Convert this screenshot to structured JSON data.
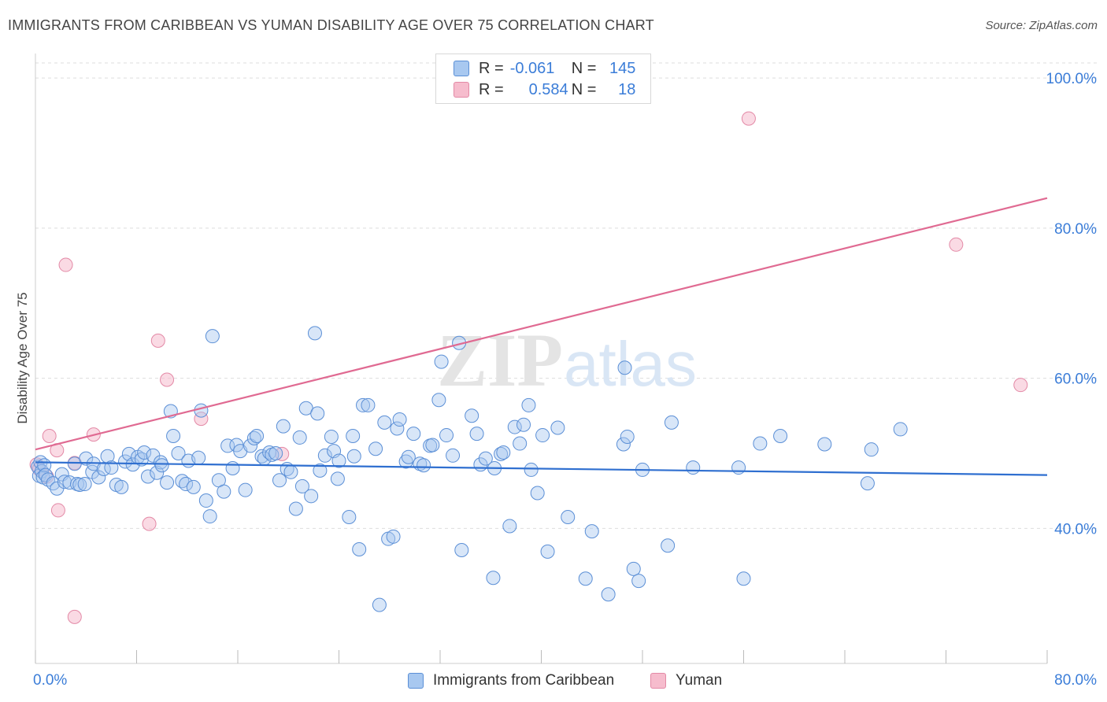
{
  "header": {
    "title": "IMMIGRANTS FROM CARIBBEAN VS YUMAN DISABILITY AGE OVER 75 CORRELATION CHART",
    "source": "Source: ZipAtlas.com"
  },
  "legend": {
    "rows": [
      {
        "r_label": "R =",
        "r_value": "-0.061",
        "n_label": "N =",
        "n_value": "145"
      },
      {
        "r_label": "R =",
        "r_value": "0.584",
        "n_label": "N =",
        "n_value": "18"
      }
    ]
  },
  "bottom_legend": [
    {
      "label": "Immigrants from Caribbean"
    },
    {
      "label": "Yuman"
    }
  ],
  "watermark": {
    "zip": "ZIP",
    "atlas": "atlas"
  },
  "colors": {
    "blue_fill": "#a8c8f0",
    "blue_stroke": "#5b8fd6",
    "blue_line": "#2f6fd0",
    "pink_fill": "#f6bccd",
    "pink_stroke": "#e389a6",
    "pink_line": "#e06a92",
    "axis_label": "#3b7dd8",
    "grid": "#dddddd"
  },
  "chart_data": {
    "type": "scatter",
    "title": "IMMIGRANTS FROM CARIBBEAN VS YUMAN DISABILITY AGE OVER 75 CORRELATION CHART",
    "xlabel": "",
    "ylabel": "Disability Age Over 75",
    "xlim": [
      0,
      80
    ],
    "ylim": [
      22,
      102
    ],
    "x_tick_labels": [
      "0.0%",
      "80.0%"
    ],
    "y_ticks": [
      40,
      60,
      80,
      100
    ],
    "y_tick_labels": [
      "40.0%",
      "60.0%",
      "80.0%",
      "100.0%"
    ],
    "grid": true,
    "legend_position": "top-center",
    "series": [
      {
        "name": "Immigrants from Caribbean",
        "trend": {
          "x": [
            0,
            80
          ],
          "y": [
            48.8,
            47.1
          ]
        },
        "points": [
          [
            0.2,
            48.2
          ],
          [
            0.3,
            47.0
          ],
          [
            0.4,
            48.8
          ],
          [
            0.5,
            47.6
          ],
          [
            0.6,
            46.8
          ],
          [
            0.7,
            48.4
          ],
          [
            0.8,
            47.1
          ],
          [
            1.0,
            46.5
          ],
          [
            1.4,
            46.0
          ],
          [
            1.7,
            45.3
          ],
          [
            2.1,
            47.2
          ],
          [
            2.3,
            46.2
          ],
          [
            2.7,
            46.1
          ],
          [
            3.1,
            48.6
          ],
          [
            3.3,
            45.9
          ],
          [
            3.5,
            45.8
          ],
          [
            3.9,
            45.9
          ],
          [
            4.0,
            49.3
          ],
          [
            4.5,
            47.5
          ],
          [
            4.6,
            48.6
          ],
          [
            5.0,
            46.8
          ],
          [
            5.4,
            47.9
          ],
          [
            5.7,
            49.6
          ],
          [
            6.0,
            48.1
          ],
          [
            6.4,
            45.8
          ],
          [
            6.8,
            45.5
          ],
          [
            7.1,
            48.9
          ],
          [
            7.4,
            49.9
          ],
          [
            7.7,
            48.5
          ],
          [
            8.1,
            49.5
          ],
          [
            8.4,
            49.2
          ],
          [
            8.6,
            50.1
          ],
          [
            8.9,
            46.9
          ],
          [
            9.3,
            49.7
          ],
          [
            9.6,
            47.4
          ],
          [
            9.9,
            48.8
          ],
          [
            10.0,
            48.4
          ],
          [
            10.4,
            46.1
          ],
          [
            10.7,
            55.6
          ],
          [
            10.9,
            52.3
          ],
          [
            11.3,
            50.0
          ],
          [
            11.6,
            46.3
          ],
          [
            11.9,
            45.9
          ],
          [
            12.1,
            49.0
          ],
          [
            12.5,
            45.5
          ],
          [
            12.9,
            49.4
          ],
          [
            13.1,
            55.7
          ],
          [
            13.5,
            43.7
          ],
          [
            13.8,
            41.6
          ],
          [
            14.0,
            65.6
          ],
          [
            14.5,
            46.4
          ],
          [
            14.9,
            44.9
          ],
          [
            15.2,
            51.0
          ],
          [
            15.6,
            48.0
          ],
          [
            15.9,
            51.1
          ],
          [
            16.2,
            50.3
          ],
          [
            16.6,
            45.1
          ],
          [
            17.0,
            51.0
          ],
          [
            17.3,
            52.0
          ],
          [
            17.5,
            52.3
          ],
          [
            17.9,
            49.6
          ],
          [
            18.1,
            49.3
          ],
          [
            18.5,
            50.1
          ],
          [
            18.7,
            49.8
          ],
          [
            19.0,
            50.0
          ],
          [
            19.3,
            46.4
          ],
          [
            19.6,
            53.6
          ],
          [
            19.9,
            47.9
          ],
          [
            20.2,
            47.5
          ],
          [
            20.6,
            42.6
          ],
          [
            20.9,
            52.1
          ],
          [
            21.1,
            45.6
          ],
          [
            21.4,
            56.0
          ],
          [
            21.8,
            44.3
          ],
          [
            22.1,
            66.0
          ],
          [
            22.3,
            55.3
          ],
          [
            22.5,
            47.7
          ],
          [
            22.9,
            49.7
          ],
          [
            23.4,
            52.2
          ],
          [
            23.6,
            50.3
          ],
          [
            23.9,
            46.6
          ],
          [
            24.0,
            49.0
          ],
          [
            24.8,
            41.5
          ],
          [
            25.1,
            52.3
          ],
          [
            25.2,
            49.6
          ],
          [
            25.6,
            37.2
          ],
          [
            25.9,
            56.4
          ],
          [
            26.3,
            56.4
          ],
          [
            26.9,
            50.6
          ],
          [
            27.2,
            29.8
          ],
          [
            27.6,
            54.1
          ],
          [
            27.9,
            38.6
          ],
          [
            28.3,
            38.9
          ],
          [
            28.6,
            53.3
          ],
          [
            28.8,
            54.5
          ],
          [
            29.3,
            48.9
          ],
          [
            29.5,
            49.5
          ],
          [
            29.9,
            52.6
          ],
          [
            30.4,
            48.6
          ],
          [
            30.7,
            48.4
          ],
          [
            31.2,
            51.0
          ],
          [
            31.4,
            51.1
          ],
          [
            31.9,
            57.1
          ],
          [
            32.1,
            62.2
          ],
          [
            32.5,
            52.4
          ],
          [
            33.0,
            49.7
          ],
          [
            33.5,
            64.7
          ],
          [
            33.7,
            37.1
          ],
          [
            34.5,
            55.0
          ],
          [
            34.9,
            52.6
          ],
          [
            35.2,
            48.5
          ],
          [
            35.6,
            49.3
          ],
          [
            36.2,
            33.4
          ],
          [
            36.3,
            48.0
          ],
          [
            36.8,
            49.9
          ],
          [
            37.0,
            50.1
          ],
          [
            37.5,
            40.3
          ],
          [
            37.9,
            53.5
          ],
          [
            38.3,
            51.3
          ],
          [
            38.6,
            53.8
          ],
          [
            39.0,
            56.4
          ],
          [
            39.2,
            47.8
          ],
          [
            39.7,
            44.7
          ],
          [
            40.1,
            52.4
          ],
          [
            40.5,
            36.9
          ],
          [
            41.3,
            53.4
          ],
          [
            42.1,
            41.5
          ],
          [
            43.5,
            33.3
          ],
          [
            44.0,
            39.6
          ],
          [
            45.3,
            31.2
          ],
          [
            46.5,
            51.2
          ],
          [
            46.6,
            61.4
          ],
          [
            46.8,
            52.2
          ],
          [
            47.3,
            34.6
          ],
          [
            47.7,
            33.0
          ],
          [
            48.0,
            47.8
          ],
          [
            50.0,
            37.7
          ],
          [
            50.3,
            54.1
          ],
          [
            52.0,
            48.1
          ],
          [
            55.6,
            48.1
          ],
          [
            56.0,
            33.3
          ],
          [
            57.3,
            51.3
          ],
          [
            58.9,
            52.3
          ],
          [
            62.4,
            51.2
          ],
          [
            65.8,
            46.0
          ],
          [
            66.1,
            50.5
          ],
          [
            68.4,
            53.2
          ]
        ]
      },
      {
        "name": "Yuman",
        "trend": {
          "x": [
            0,
            80
          ],
          "y": [
            50.5,
            84.0
          ]
        },
        "points": [
          [
            0.1,
            48.5
          ],
          [
            0.3,
            47.9
          ],
          [
            1.1,
            52.3
          ],
          [
            1.7,
            50.4
          ],
          [
            1.8,
            42.4
          ],
          [
            2.4,
            75.1
          ],
          [
            3.1,
            28.2
          ],
          [
            3.1,
            48.7
          ],
          [
            4.6,
            52.5
          ],
          [
            9.0,
            40.6
          ],
          [
            9.7,
            65.0
          ],
          [
            10.4,
            59.8
          ],
          [
            13.1,
            54.6
          ],
          [
            19.5,
            49.9
          ],
          [
            56.4,
            94.6
          ],
          [
            72.8,
            77.8
          ],
          [
            77.9,
            59.1
          ],
          [
            0.9,
            46.9
          ]
        ]
      }
    ]
  }
}
